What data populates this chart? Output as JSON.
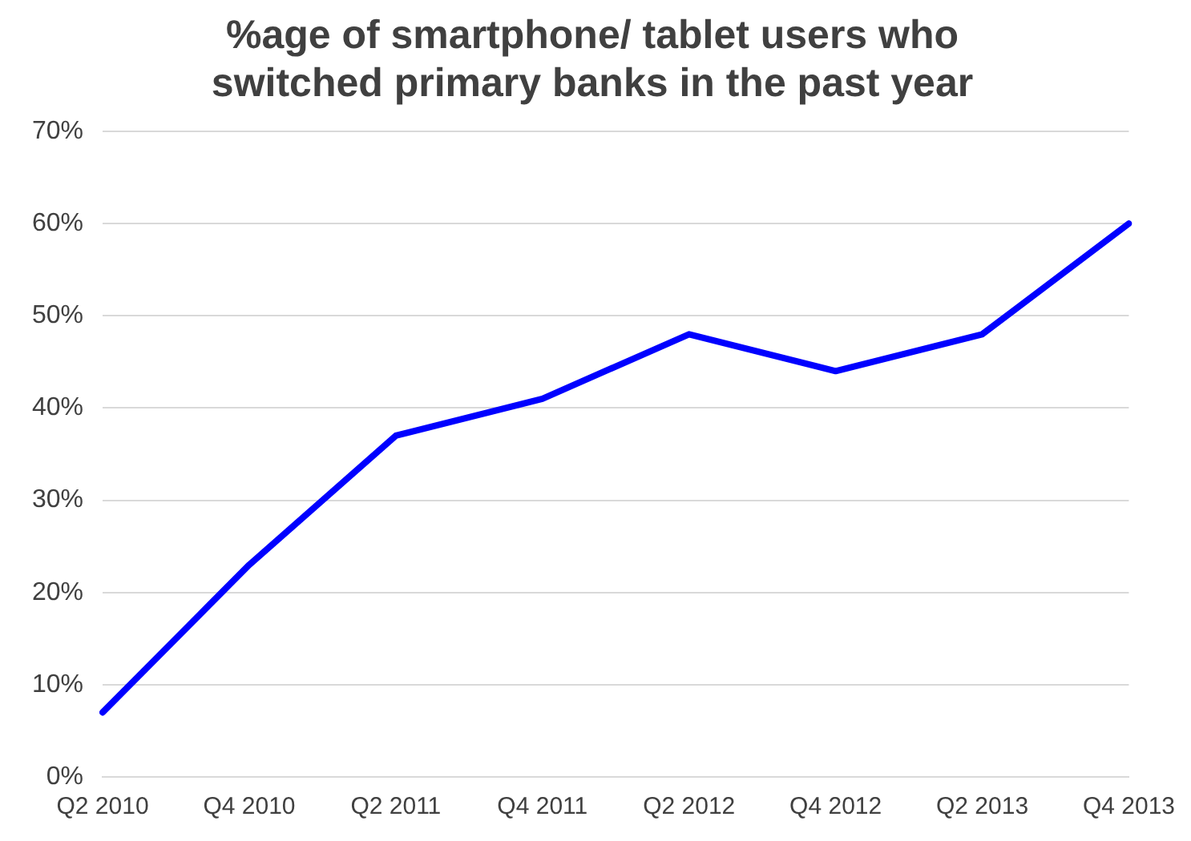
{
  "chart_data": {
    "type": "line",
    "title": "%age of smartphone/ tablet users who\nswitched primary banks in the past year",
    "categories": [
      "Q2 2010",
      "Q4 2010",
      "Q2 2011",
      "Q4 2011",
      "Q2 2012",
      "Q4 2012",
      "Q2 2013",
      "Q4 2013"
    ],
    "series": [
      {
        "color": "#0000ff",
        "values": [
          7,
          23,
          37,
          41,
          48,
          44,
          48,
          60
        ]
      }
    ],
    "ylim": [
      0,
      70
    ],
    "yticks": [
      {
        "value": 0,
        "label": "0%"
      },
      {
        "value": 10,
        "label": "10%"
      },
      {
        "value": 20,
        "label": "20%"
      },
      {
        "value": 30,
        "label": "30%"
      },
      {
        "value": 40,
        "label": "40%"
      },
      {
        "value": 50,
        "label": "50%"
      },
      {
        "value": 60,
        "label": "60%"
      },
      {
        "value": 70,
        "label": "70%"
      }
    ],
    "grid": "y",
    "legend": false,
    "marker": "none",
    "line_style": "solid"
  }
}
